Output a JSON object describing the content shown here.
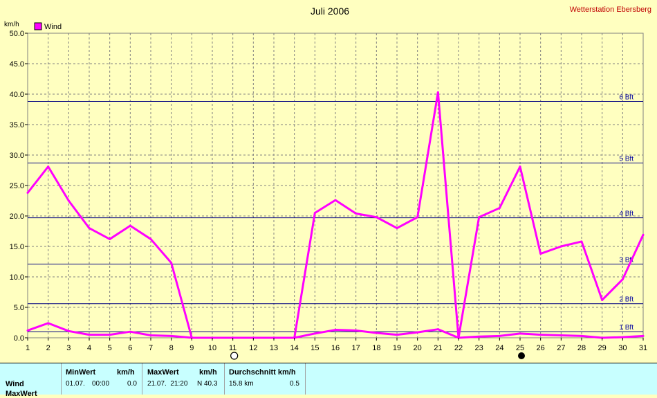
{
  "header": {
    "title": "Juli 2006",
    "station": "Wetterstation Ebersberg"
  },
  "axis": {
    "unit": "km/h"
  },
  "legend": {
    "label": "Wind",
    "color": "#ff00ff"
  },
  "colors": {
    "background": "#ffffc0",
    "series": "#ff00ff",
    "beaufort": "#000080",
    "grid": "#808080"
  },
  "chart_data": {
    "type": "line",
    "title": "Juli 2006",
    "ylabel": "km/h",
    "xlim": [
      1,
      31
    ],
    "ylim": [
      0,
      50
    ],
    "x": [
      1,
      2,
      3,
      4,
      5,
      6,
      7,
      8,
      9,
      10,
      11,
      12,
      13,
      14,
      15,
      16,
      17,
      18,
      19,
      20,
      21,
      22,
      23,
      24,
      25,
      26,
      27,
      28,
      29,
      30,
      31
    ],
    "xticks": [
      "1",
      "2",
      "3",
      "4",
      "5",
      "6",
      "7",
      "8",
      "9",
      "10",
      "11",
      "12",
      "13",
      "14",
      "15",
      "16",
      "17",
      "18",
      "19",
      "20",
      "21",
      "22",
      "23",
      "24",
      "25",
      "26",
      "27",
      "28",
      "29",
      "30",
      "31"
    ],
    "yticks": [
      "0.0",
      "5.0",
      "10.0",
      "15.0",
      "20.0",
      "25.0",
      "30.0",
      "35.0",
      "40.0",
      "45.0",
      "50.0"
    ],
    "grid": true,
    "legend_position": "top-left",
    "series": [
      {
        "name": "Wind",
        "values": [
          23.8,
          28.1,
          22.5,
          18.0,
          16.2,
          18.4,
          16.2,
          12.3,
          0,
          0,
          0,
          0,
          0,
          0,
          20.5,
          22.6,
          20.4,
          19.8,
          18.0,
          19.8,
          40.3,
          0,
          19.8,
          21.3,
          28.1,
          13.8,
          15.0,
          15.8,
          6.2,
          9.6,
          16.9
        ]
      },
      {
        "values": [
          1.2,
          2.4,
          1.1,
          0.5,
          0.5,
          1.0,
          0.4,
          0.3,
          0,
          0,
          0,
          0,
          0,
          0,
          0.7,
          1.3,
          1.2,
          0.8,
          0.5,
          0.9,
          1.4,
          0,
          0.2,
          0.3,
          0.7,
          0.5,
          0.4,
          0.3,
          0,
          0.1,
          0.3
        ]
      }
    ],
    "beaufort": [
      {
        "label": "1 Bft",
        "value": 1.0
      },
      {
        "label": "2 Bft",
        "value": 5.6
      },
      {
        "label": "3 Bft",
        "value": 12.1
      },
      {
        "label": "4 Bft",
        "value": 19.7
      },
      {
        "label": "5 Bft",
        "value": 28.7
      },
      {
        "label": "6 Bft",
        "value": 38.8
      }
    ],
    "moon_phases": [
      {
        "day": 11,
        "phase": "full"
      },
      {
        "day": 25,
        "phase": "new"
      }
    ]
  },
  "stats": {
    "row_label": "Wind",
    "row2_label": "MaxWert",
    "min": {
      "header": "MinWert",
      "unit": "km/h",
      "date": "01.07.",
      "time": "00:00",
      "value": "0.0"
    },
    "max": {
      "header": "MaxWert",
      "unit": "km/h",
      "datetime": "21.07.  21:20",
      "value": "N 40.3"
    },
    "avg": {
      "header": "Durchschnitt km/h",
      "run": "15.8 km",
      "value": "0.5"
    }
  }
}
